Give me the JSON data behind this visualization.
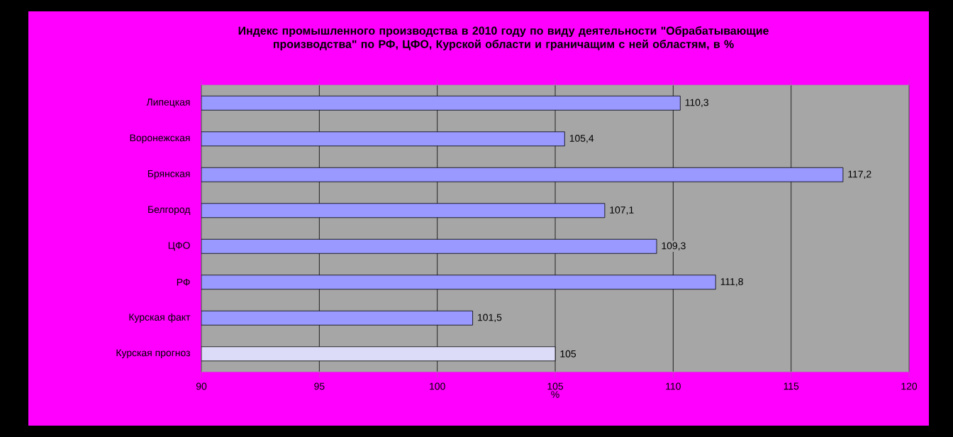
{
  "chart_data": {
    "type": "bar",
    "orientation": "horizontal",
    "title": "Индекс промышленного производства в 2010 году по виду деятельности \"Обрабатывающие производства\" по РФ, ЦФО, Курской области и граничащим с ней областям, в %",
    "xlabel": "%",
    "categories": [
      "Липецкая",
      "Воронежская",
      "Брянская",
      "Белгород",
      "ЦФО",
      "РФ",
      "Курская факт",
      "Курская прогноз"
    ],
    "values": [
      110.3,
      105.4,
      117.2,
      107.1,
      109.3,
      111.8,
      101.5,
      105
    ],
    "value_labels": [
      "110,3",
      "105,4",
      "117,2",
      "107,1",
      "109,3",
      "111,8",
      "101,5",
      "105"
    ],
    "colors": [
      "#9999ff",
      "#9999ff",
      "#9999ff",
      "#9999ff",
      "#9999ff",
      "#9999ff",
      "#9999ff",
      "#dcdcf8"
    ],
    "xlim": [
      90,
      120
    ],
    "xticks": [
      90,
      95,
      100,
      105,
      110,
      115,
      120
    ],
    "grid": "x"
  }
}
